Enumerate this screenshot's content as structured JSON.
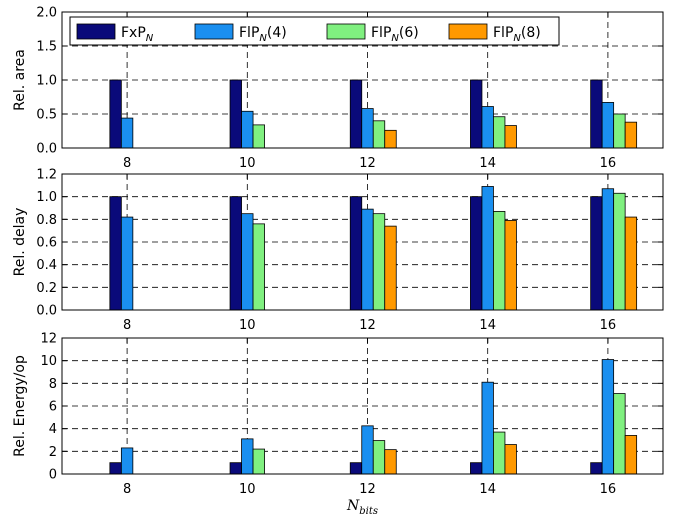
{
  "colors": {
    "FxP": "#0a0a7a",
    "FlP4": "#1a8ff0",
    "FlP6": "#80f080",
    "FlP8": "#ff9900"
  },
  "chart_data": {
    "type": "bar",
    "xlabel": "N_bits",
    "categories": [
      "8",
      "10",
      "12",
      "14",
      "16"
    ],
    "legend": {
      "placement": "top",
      "entries": [
        "FxP_N",
        "FlP_N(4)",
        "FlP_N(6)",
        "FlP_N(8)"
      ]
    },
    "grid": true,
    "subplots": [
      {
        "ylabel": "Rel. area",
        "ylim": [
          0,
          2.0
        ],
        "yticks": [
          "0.0",
          "0.5",
          "1.0",
          "1.5",
          "2.0"
        ],
        "series": [
          {
            "name": "FxP_N",
            "values": [
              1.0,
              1.0,
              1.0,
              1.0,
              1.0
            ]
          },
          {
            "name": "FlP_N(4)",
            "values": [
              0.44,
              0.54,
              0.58,
              0.61,
              0.67
            ]
          },
          {
            "name": "FlP_N(6)",
            "values": [
              null,
              0.34,
              0.4,
              0.46,
              0.5
            ]
          },
          {
            "name": "FlP_N(8)",
            "values": [
              null,
              null,
              0.26,
              0.33,
              0.38
            ]
          }
        ]
      },
      {
        "ylabel": "Rel. delay",
        "ylim": [
          0,
          1.2
        ],
        "yticks": [
          "0.0",
          "0.2",
          "0.4",
          "0.6",
          "0.8",
          "1.0",
          "1.2"
        ],
        "series": [
          {
            "name": "FxP_N",
            "values": [
              1.0,
              1.0,
              1.0,
              1.0,
              1.0
            ]
          },
          {
            "name": "FlP_N(4)",
            "values": [
              0.82,
              0.85,
              0.89,
              1.09,
              1.07
            ]
          },
          {
            "name": "FlP_N(6)",
            "values": [
              null,
              0.76,
              0.85,
              0.87,
              1.03
            ]
          },
          {
            "name": "FlP_N(8)",
            "values": [
              null,
              null,
              0.74,
              0.79,
              0.82
            ]
          }
        ]
      },
      {
        "ylabel": "Rel. Energy/op",
        "ylim": [
          0,
          12
        ],
        "yticks": [
          "0",
          "2",
          "4",
          "6",
          "8",
          "10",
          "12"
        ],
        "series": [
          {
            "name": "FxP_N",
            "values": [
              1.0,
              1.0,
              1.0,
              1.0,
              1.0
            ]
          },
          {
            "name": "FlP_N(4)",
            "values": [
              2.3,
              3.1,
              4.25,
              8.1,
              10.1
            ]
          },
          {
            "name": "FlP_N(6)",
            "values": [
              null,
              2.2,
              2.95,
              3.7,
              7.1
            ]
          },
          {
            "name": "FlP_N(8)",
            "values": [
              null,
              null,
              2.15,
              2.6,
              3.4
            ]
          }
        ]
      }
    ]
  }
}
